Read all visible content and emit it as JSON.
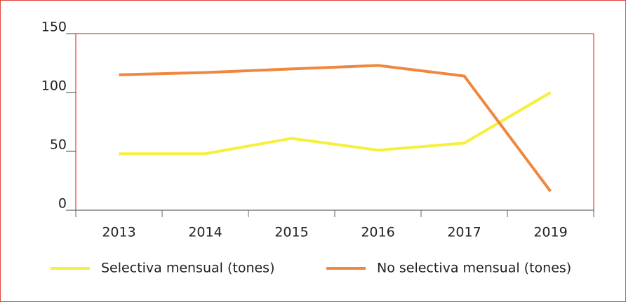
{
  "chart_data": {
    "type": "line",
    "categories": [
      "2013",
      "2014",
      "2015",
      "2016",
      "2017",
      "2019"
    ],
    "series": [
      {
        "name": "Selectiva mensual (tones)",
        "color": "#f6ef3c",
        "values": [
          48,
          48,
          61,
          51,
          57,
          100
        ]
      },
      {
        "name": "No selectiva mensual (tones)",
        "color": "#f0873f",
        "values": [
          115,
          117,
          120,
          123,
          114,
          16
        ]
      }
    ],
    "ylim": [
      0,
      150
    ],
    "yticks": [
      0,
      50,
      100,
      150
    ],
    "grid": false,
    "legend": "bottom"
  }
}
